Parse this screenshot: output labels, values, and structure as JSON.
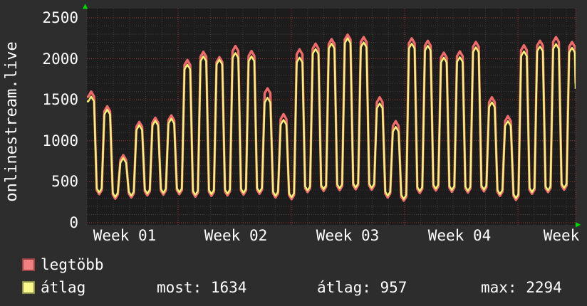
{
  "side_label": "onlinestream.live",
  "y_axis_ticks": [
    "0",
    "500",
    "1000",
    "1500",
    "2000",
    "2500"
  ],
  "x_axis_labels": [
    "Week 01",
    "Week 02",
    "Week 03",
    "Week 04",
    "Week"
  ],
  "legend": [
    {
      "label": "legtöbb",
      "swatch_fill": "#f28080",
      "swatch_border": "#9c4343"
    },
    {
      "label": "átlag",
      "swatch_fill": "#fafa8c",
      "swatch_border": "#8f8f4a"
    }
  ],
  "stats": {
    "most": "most: 1634",
    "atlag": "átlag: 957",
    "max": "max: 2294"
  },
  "icons": {
    "up_arrow": "▲",
    "right_arrow": "▶"
  },
  "colors": {
    "background": "#2d2d2d",
    "plot_background": "#1c1c1c",
    "grid_minor": "#3e3e3e",
    "grid_major": "#9e3939",
    "series_legtobb": "#f06a6a",
    "series_atlag": "#f6f473",
    "text": "#ffffff",
    "arrow_green": "#00d900"
  },
  "chart_data": {
    "type": "line",
    "title": "onlinestream.live",
    "x_unit": "days",
    "days_visible": 31,
    "x_axis": {
      "labels": [
        "Week 01",
        "Week 02",
        "Week 03",
        "Week 04",
        "Week"
      ],
      "week_length_days": 7
    },
    "y_axis": {
      "range": [
        0,
        2500
      ],
      "major_step": 500,
      "minor_step": 100,
      "tick_values": [
        0,
        500,
        1000,
        1500,
        2000,
        2500
      ]
    },
    "series": [
      {
        "name": "legtöbb",
        "color": "#f06a6a",
        "daily_peaks": [
          1600,
          1420,
          825,
          1230,
          1280,
          1310,
          1985,
          2085,
          2020,
          2155,
          2095,
          1640,
          1325,
          2115,
          2185,
          2240,
          2294,
          2265,
          1530,
          1240,
          2250,
          2220,
          2075,
          2090,
          2205,
          1530,
          1300,
          2165,
          2220,
          2265,
          2205
        ],
        "start_value": 1530,
        "end_value": 1700
      },
      {
        "name": "átlag",
        "color": "#f6f473",
        "daily_peaks": [
          1540,
          1380,
          790,
          1190,
          1245,
          1270,
          1930,
          2030,
          1990,
          2070,
          2030,
          1525,
          1255,
          2015,
          2120,
          2185,
          2250,
          2200,
          1455,
          1170,
          2185,
          2160,
          2015,
          2020,
          2140,
          1470,
          1240,
          2090,
          2150,
          2180,
          2135
        ],
        "start_value": 1480,
        "end_value": 1634
      }
    ],
    "daily_troughs": [
      370,
      315,
      330,
      355,
      365,
      370,
      340,
      350,
      355,
      365,
      375,
      330,
      310,
      395,
      410,
      420,
      430,
      425,
      330,
      290,
      385,
      415,
      400,
      390,
      405,
      350,
      300,
      375,
      395,
      425
    ],
    "stats": {
      "most": 1634,
      "atlag": 957,
      "max": 2294
    },
    "legend_position": "bottom-left",
    "grid": true
  }
}
